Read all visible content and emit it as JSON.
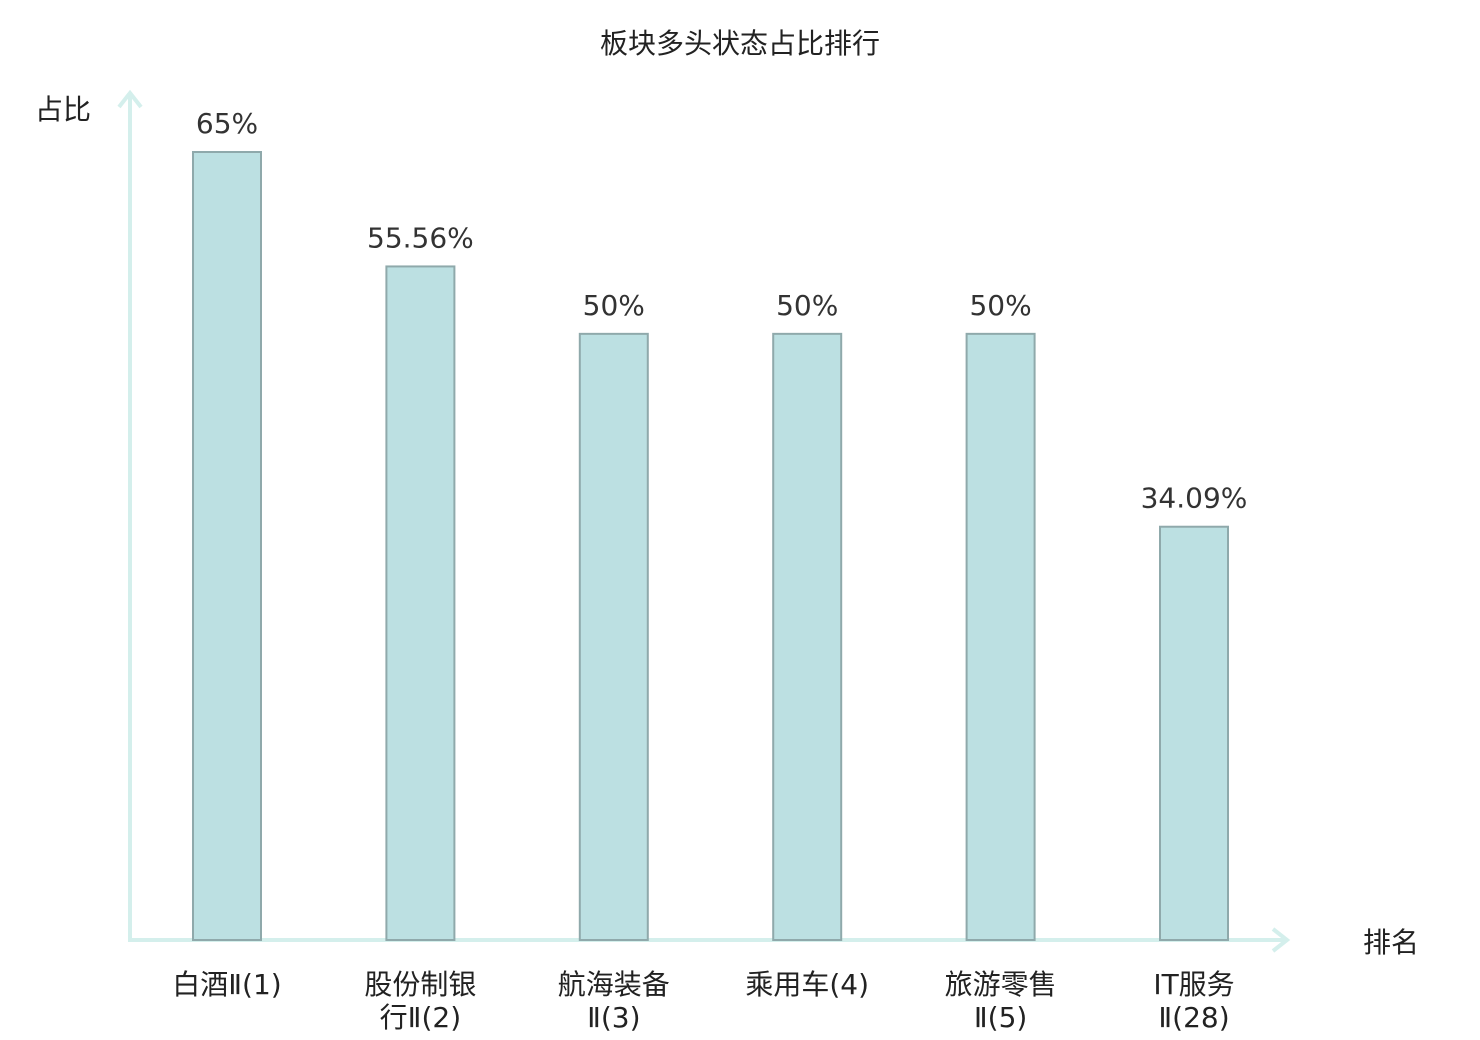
{
  "chart_data": {
    "type": "bar",
    "title": "板块多头状态占比排行",
    "ylabel": "占比",
    "xlabel": "排名",
    "categories": [
      [
        "白酒Ⅱ(1)"
      ],
      [
        "股份制银",
        "行Ⅱ(2)"
      ],
      [
        "航海装备",
        "Ⅱ(3)"
      ],
      [
        "乘用车(4)"
      ],
      [
        "旅游零售",
        "Ⅱ(5)"
      ],
      [
        "IT服务",
        "Ⅱ(28)"
      ]
    ],
    "values": [
      65,
      55.56,
      50,
      50,
      50,
      34.09
    ],
    "value_labels": [
      "65%",
      "55.56%",
      "50%",
      "50%",
      "50%",
      "34.09%"
    ],
    "highlight_index": 5,
    "ylim": [
      0,
      65
    ],
    "grid": false,
    "legend": "none"
  },
  "colors": {
    "bar_fill": "#bce0e2",
    "bar_stroke": "#8fa9ab",
    "axis": "#d4efec",
    "highlight_text": "#e0211d",
    "text": "#222222",
    "value_text": "#333333"
  }
}
